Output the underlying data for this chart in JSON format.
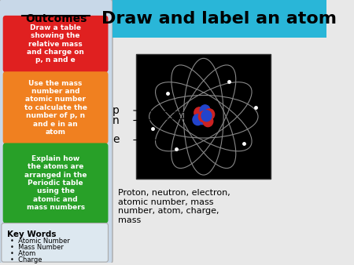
{
  "bg_color": "#e8e8e8",
  "title": "Draw and label an atom",
  "title_bg": "#29b6d8",
  "title_color": "black",
  "left_panel_bg": "#c8d8e8",
  "outcomes_title": "Outcomes",
  "box1_text": "Draw a table\nshowing the\nrelative mass\nand charge on\np, n and e",
  "box1_color": "#e02020",
  "box2_text": "Use the mass\nnumber and\natomic number\nto calculate the\nnumber of p, n\nand e in an\natom",
  "box2_color": "#f08020",
  "box3_text": "Explain how\nthe atoms are\narranged in the\nPeriodic table\nusing the\natomic and\nmass numbers",
  "box3_color": "#28a028",
  "keywords_title": "Key Words",
  "keywords": [
    "Atomic Number",
    "Mass Number",
    "Atom",
    "Charge"
  ],
  "labels_p": "p",
  "labels_n": "n",
  "labels_e": "e",
  "bottom_text": "Proton, neutron, electron,\natomic number, mass\nnumber, atom, charge,\nmass"
}
